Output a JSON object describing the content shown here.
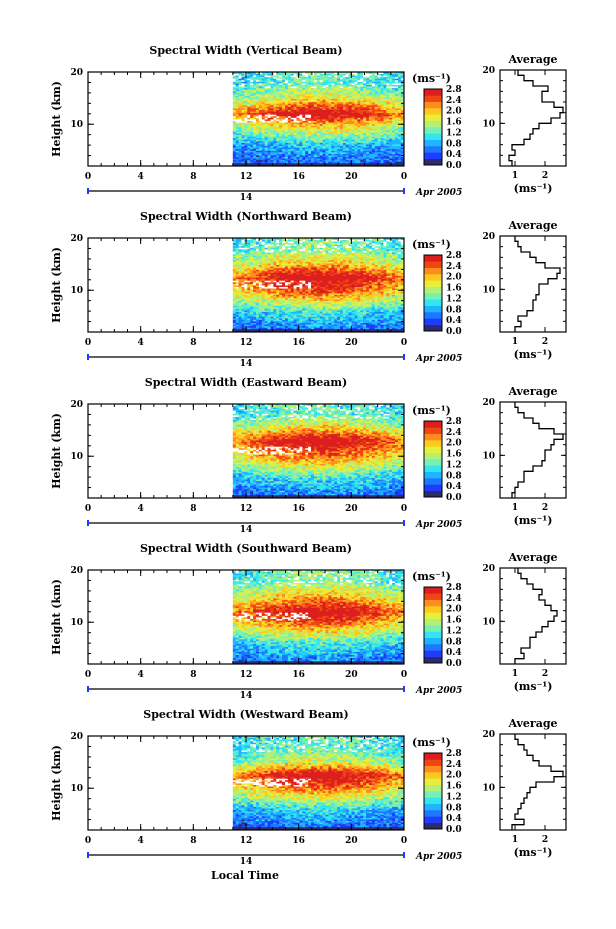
{
  "figure": {
    "xlabel_common": "Local Time",
    "date_label": "Apr 2005",
    "day_label": "14",
    "colorbar_unit": "(ms⁻¹)",
    "avg_title": "Average",
    "avg_xlabel": "(ms⁻¹)"
  },
  "colors": {
    "scale": [
      "#2b2b6e",
      "#1e3cff",
      "#1e78ff",
      "#1eb4ff",
      "#32e6f0",
      "#78f0b4",
      "#b4f078",
      "#e6f03c",
      "#ffc81e",
      "#ff8c1e",
      "#f04614",
      "#dc1e1e"
    ],
    "missing": "#ffffff",
    "line": "#000000"
  },
  "chart_data": [
    {
      "type": "heatmap",
      "title": "Spectral Width (Vertical Beam)",
      "ylabel": "Height (km)",
      "x_ticks": [
        "0",
        "4",
        "8",
        "12",
        "16",
        "20",
        "0"
      ],
      "xlim": [
        0,
        24
      ],
      "ylim": [
        2,
        20
      ],
      "y_ticks": [
        "10",
        "20"
      ],
      "data_start_hour": 11.0,
      "colorbar_ticks": [
        "2.8",
        "2.4",
        "2.0",
        "1.6",
        "1.2",
        "0.8",
        "0.4",
        "0.0"
      ],
      "colorbar_range": [
        0.0,
        2.8
      ],
      "layers": [
        {
          "height_km": 3.0,
          "width_ms": 0.5
        },
        {
          "height_km": 6.0,
          "width_ms": 0.8
        },
        {
          "height_km": 10.0,
          "width_ms": 1.8
        },
        {
          "height_km": 12.0,
          "width_ms": 2.6
        },
        {
          "height_km": 15.0,
          "width_ms": 1.6
        },
        {
          "height_km": 18.0,
          "width_ms": 1.1
        }
      ],
      "average": {
        "title": "Average",
        "xlabel": "(ms⁻¹)",
        "x_ticks": [
          "1",
          "2"
        ],
        "xlim": [
          0.5,
          2.7
        ],
        "y_ticks": [
          "10",
          "20"
        ],
        "ylim": [
          2,
          20
        ],
        "height_km": [
          2.5,
          3.5,
          4.5,
          5.5,
          6.5,
          7.5,
          8.5,
          9.5,
          10.5,
          11.5,
          12.5,
          13.5,
          14.5,
          15.5,
          16.5,
          17.5,
          18.5,
          19.5
        ],
        "width_ms": [
          0.9,
          0.8,
          1.0,
          0.9,
          1.3,
          1.5,
          1.6,
          1.8,
          2.2,
          2.5,
          2.6,
          2.3,
          1.9,
          1.9,
          2.1,
          1.6,
          1.3,
          1.1
        ]
      }
    },
    {
      "type": "heatmap",
      "title": "Spectral Width (Northward Beam)",
      "ylabel": "Height (km)",
      "x_ticks": [
        "0",
        "4",
        "8",
        "12",
        "16",
        "20",
        "0"
      ],
      "xlim": [
        0,
        24
      ],
      "ylim": [
        2,
        20
      ],
      "y_ticks": [
        "10",
        "20"
      ],
      "data_start_hour": 11.0,
      "colorbar_ticks": [
        "2.8",
        "2.4",
        "2.0",
        "1.6",
        "1.2",
        "0.8",
        "0.4",
        "0.0"
      ],
      "colorbar_range": [
        0.0,
        2.8
      ],
      "layers": [
        {
          "height_km": 3.0,
          "width_ms": 0.6
        },
        {
          "height_km": 6.0,
          "width_ms": 1.0
        },
        {
          "height_km": 10.0,
          "width_ms": 2.2
        },
        {
          "height_km": 12.5,
          "width_ms": 2.6
        },
        {
          "height_km": 15.0,
          "width_ms": 1.8
        },
        {
          "height_km": 18.0,
          "width_ms": 1.2
        }
      ],
      "average": {
        "title": "Average",
        "xlabel": "(ms⁻¹)",
        "x_ticks": [
          "1",
          "2"
        ],
        "xlim": [
          0.5,
          2.7
        ],
        "y_ticks": [
          "10",
          "20"
        ],
        "ylim": [
          2,
          20
        ],
        "height_km": [
          2.5,
          3.5,
          4.5,
          5.5,
          6.5,
          7.5,
          8.5,
          9.5,
          10.5,
          11.5,
          12.5,
          13.5,
          14.5,
          15.5,
          16.5,
          17.5,
          18.5,
          19.5
        ],
        "width_ms": [
          1.0,
          1.2,
          1.1,
          1.4,
          1.6,
          1.6,
          1.7,
          1.8,
          1.8,
          2.1,
          2.4,
          2.5,
          2.0,
          1.7,
          1.5,
          1.2,
          1.1,
          1.0
        ]
      }
    },
    {
      "type": "heatmap",
      "title": "Spectral Width (Eastward Beam)",
      "ylabel": "Height (km)",
      "x_ticks": [
        "0",
        "4",
        "8",
        "12",
        "16",
        "20",
        "0"
      ],
      "xlim": [
        0,
        24
      ],
      "ylim": [
        2,
        20
      ],
      "y_ticks": [
        "10",
        "20"
      ],
      "data_start_hour": 11.0,
      "colorbar_ticks": [
        "2.8",
        "2.4",
        "2.0",
        "1.6",
        "1.2",
        "0.8",
        "0.4",
        "0.0"
      ],
      "colorbar_range": [
        0.0,
        2.8
      ],
      "layers": [
        {
          "height_km": 3.0,
          "width_ms": 0.6
        },
        {
          "height_km": 6.0,
          "width_ms": 1.0
        },
        {
          "height_km": 10.0,
          "width_ms": 2.0
        },
        {
          "height_km": 13.0,
          "width_ms": 2.6
        },
        {
          "height_km": 15.5,
          "width_ms": 1.7
        },
        {
          "height_km": 18.0,
          "width_ms": 1.1
        }
      ],
      "average": {
        "title": "Average",
        "xlabel": "(ms⁻¹)",
        "x_ticks": [
          "1",
          "2"
        ],
        "xlim": [
          0.5,
          2.7
        ],
        "y_ticks": [
          "10",
          "20"
        ],
        "ylim": [
          2,
          20
        ],
        "height_km": [
          2.5,
          3.5,
          4.5,
          5.5,
          6.5,
          7.5,
          8.5,
          9.5,
          10.5,
          11.5,
          12.5,
          13.5,
          14.5,
          15.5,
          16.5,
          17.5,
          18.5,
          19.5
        ],
        "width_ms": [
          0.9,
          1.0,
          1.1,
          1.3,
          1.3,
          1.6,
          1.9,
          2.0,
          2.0,
          2.2,
          2.3,
          2.6,
          2.3,
          1.8,
          1.6,
          1.3,
          1.1,
          1.0
        ]
      }
    },
    {
      "type": "heatmap",
      "title": "Spectral Width (Southward Beam)",
      "ylabel": "Height (km)",
      "x_ticks": [
        "0",
        "4",
        "8",
        "12",
        "16",
        "20",
        "0"
      ],
      "xlim": [
        0,
        24
      ],
      "ylim": [
        2,
        20
      ],
      "y_ticks": [
        "10",
        "20"
      ],
      "data_start_hour": 11.0,
      "colorbar_ticks": [
        "2.8",
        "2.4",
        "2.0",
        "1.6",
        "1.2",
        "0.8",
        "0.4",
        "0.0"
      ],
      "colorbar_range": [
        0.0,
        2.8
      ],
      "layers": [
        {
          "height_km": 3.0,
          "width_ms": 0.6
        },
        {
          "height_km": 6.0,
          "width_ms": 1.0
        },
        {
          "height_km": 10.0,
          "width_ms": 2.1
        },
        {
          "height_km": 12.0,
          "width_ms": 2.6
        },
        {
          "height_km": 15.0,
          "width_ms": 1.8
        },
        {
          "height_km": 18.0,
          "width_ms": 1.2
        }
      ],
      "average": {
        "title": "Average",
        "xlabel": "(ms⁻¹)",
        "x_ticks": [
          "1",
          "2"
        ],
        "xlim": [
          0.5,
          2.7
        ],
        "y_ticks": [
          "10",
          "20"
        ],
        "ylim": [
          2,
          20
        ],
        "height_km": [
          2.5,
          3.5,
          4.5,
          5.5,
          6.5,
          7.5,
          8.5,
          9.5,
          10.5,
          11.5,
          12.5,
          13.5,
          14.5,
          15.5,
          16.5,
          17.5,
          18.5,
          19.5
        ],
        "width_ms": [
          1.0,
          1.3,
          1.2,
          1.5,
          1.5,
          1.7,
          1.9,
          2.1,
          2.3,
          2.4,
          2.2,
          2.0,
          1.8,
          1.9,
          1.6,
          1.4,
          1.2,
          1.1
        ]
      }
    },
    {
      "type": "heatmap",
      "title": "Spectral Width (Westward Beam)",
      "ylabel": "Height (km)",
      "x_ticks": [
        "0",
        "4",
        "8",
        "12",
        "16",
        "20",
        "0"
      ],
      "xlim": [
        0,
        24
      ],
      "ylim": [
        2,
        20
      ],
      "y_ticks": [
        "10",
        "20"
      ],
      "data_start_hour": 11.0,
      "colorbar_ticks": [
        "2.8",
        "2.4",
        "2.0",
        "1.6",
        "1.2",
        "0.8",
        "0.4",
        "0.0"
      ],
      "colorbar_range": [
        0.0,
        2.8
      ],
      "layers": [
        {
          "height_km": 3.0,
          "width_ms": 0.5
        },
        {
          "height_km": 6.0,
          "width_ms": 0.9
        },
        {
          "height_km": 10.0,
          "width_ms": 2.0
        },
        {
          "height_km": 12.5,
          "width_ms": 2.6
        },
        {
          "height_km": 15.0,
          "width_ms": 1.5
        },
        {
          "height_km": 18.0,
          "width_ms": 1.1
        }
      ],
      "average": {
        "title": "Average",
        "xlabel": "(ms⁻¹)",
        "x_ticks": [
          "1",
          "2"
        ],
        "xlim": [
          0.5,
          2.7
        ],
        "y_ticks": [
          "10",
          "20"
        ],
        "ylim": [
          2,
          20
        ],
        "height_km": [
          2.5,
          3.5,
          4.5,
          5.5,
          6.5,
          7.5,
          8.5,
          9.5,
          10.5,
          11.5,
          12.5,
          13.5,
          14.5,
          15.5,
          16.5,
          17.5,
          18.5,
          19.5
        ],
        "width_ms": [
          0.9,
          1.3,
          1.0,
          1.1,
          1.2,
          1.3,
          1.4,
          1.5,
          1.7,
          2.3,
          2.6,
          2.2,
          1.8,
          1.6,
          1.4,
          1.3,
          1.1,
          1.0
        ]
      }
    }
  ]
}
